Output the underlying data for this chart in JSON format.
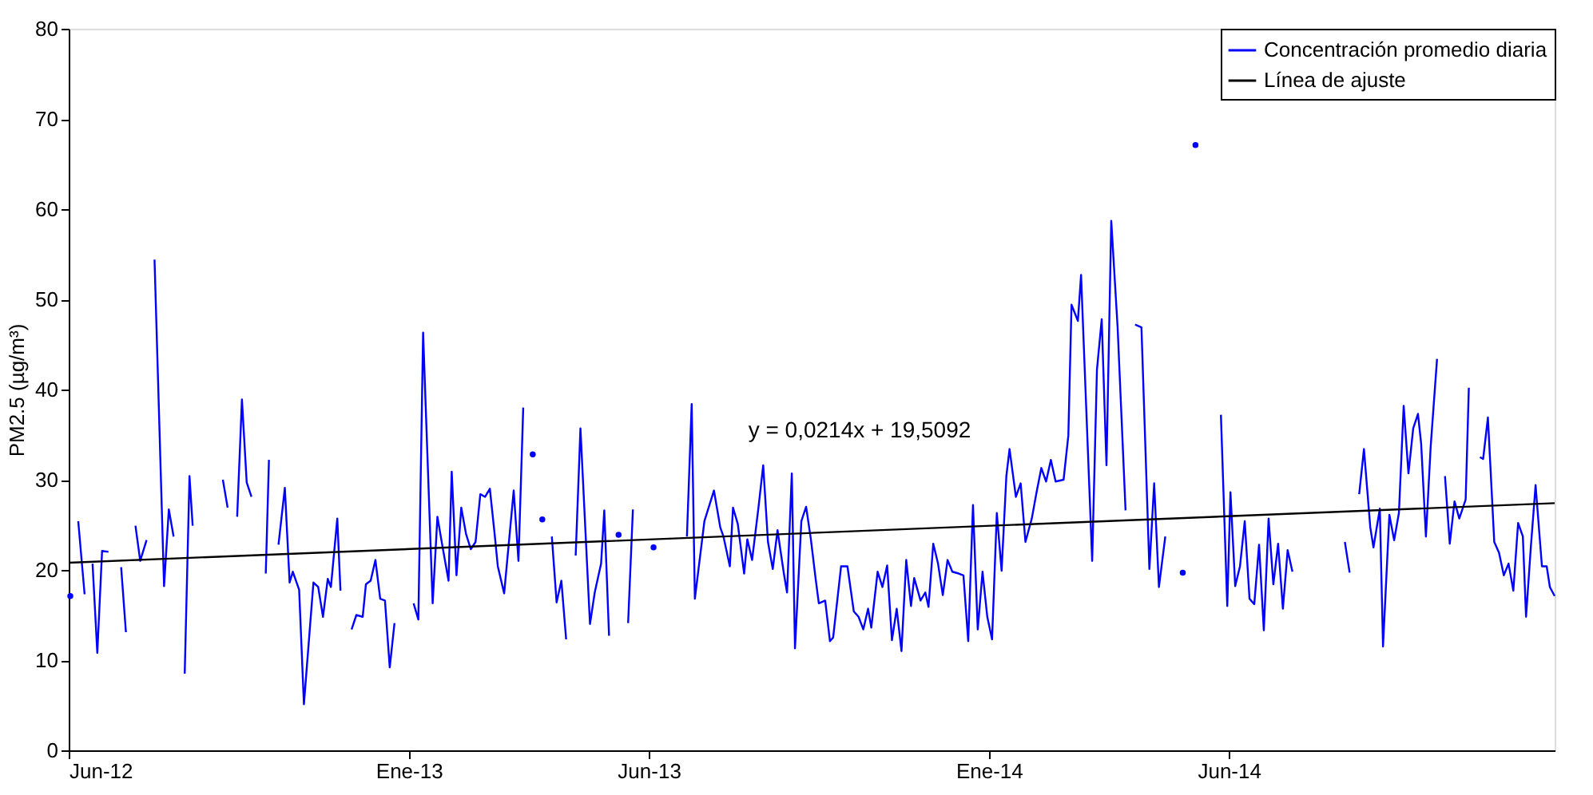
{
  "chart_data": {
    "type": "line",
    "ylabel": "PM2.5 (µg/m³)",
    "xlim": [
      "2012-06-01",
      "2014-12-23"
    ],
    "xticks": [
      {
        "value": "2012-06-01",
        "label": "Jun-12"
      },
      {
        "value": "2013-01-01",
        "label": "Ene-13"
      },
      {
        "value": "2013-06-01",
        "label": "Jun-13"
      },
      {
        "value": "2014-01-01",
        "label": "Ene-14"
      },
      {
        "value": "2014-06-01",
        "label": "Jun-14"
      }
    ],
    "ylim": [
      0,
      80
    ],
    "yticks": [
      0,
      10,
      20,
      30,
      40,
      50,
      60,
      70,
      80
    ],
    "grid": false,
    "legend": "top right",
    "marker": "none",
    "line_style": "solid",
    "annotations": [
      "y = 0,0214x + 19,5092"
    ],
    "series": [
      {
        "name": "Concentración promedio diaria",
        "color": "#0000ff",
        "x": [
          "2012-06-02",
          "2012-06-04",
          "2012-06-07",
          "2012-06-11",
          "2012-06-13",
          "2012-06-16",
          "2012-06-19",
          "2012-06-22",
          "2012-06-26",
          "2012-06-29",
          "2012-07-04",
          "2012-07-07",
          "2012-07-09",
          "2012-07-13",
          "2012-07-16",
          "2012-07-20",
          "2012-07-22",
          "2012-07-25",
          "2012-07-31",
          "2012-08-03",
          "2012-08-06",
          "2012-08-08",
          "2012-08-13",
          "2012-08-16",
          "2012-08-18",
          "2012-08-25",
          "2012-09-06",
          "2012-09-09",
          "2012-09-11",
          "2012-09-15",
          "2012-09-18",
          "2012-09-21",
          "2012-09-24",
          "2012-09-28",
          "2012-10-03",
          "2012-10-05",
          "2012-10-07",
          "2012-10-11",
          "2012-10-15",
          "2012-10-18",
          "2012-10-20",
          "2012-10-24",
          "2012-10-27",
          "2012-11-02",
          "2012-11-05",
          "2012-11-08",
          "2012-11-11",
          "2012-11-13",
          "2012-11-17",
          "2012-11-19",
          "2012-11-23",
          "2012-11-26",
          "2012-11-29",
          "2012-12-03",
          "2012-12-05",
          "2012-12-08",
          "2012-12-11",
          "2012-12-14",
          "2012-12-17",
          "2012-12-20",
          "2012-12-23",
          "2012-12-28",
          "2013-01-04",
          "2013-01-07",
          "2013-01-10",
          "2013-01-16",
          "2013-01-19",
          "2013-01-22",
          "2013-01-26",
          "2013-01-28",
          "2013-01-31",
          "2013-02-03",
          "2013-02-06",
          "2013-02-09",
          "2013-02-12",
          "2013-02-15",
          "2013-02-18",
          "2013-02-21",
          "2013-02-24",
          "2013-02-26",
          "2013-03-02",
          "2013-03-08",
          "2013-03-11",
          "2013-03-14",
          "2013-03-17",
          "2013-03-20",
          "2013-03-23",
          "2013-03-26",
          "2013-03-29",
          "2013-04-01",
          "2013-04-04",
          "2013-04-07",
          "2013-04-10",
          "2013-04-13",
          "2013-04-16",
          "2013-04-19",
          "2013-04-25",
          "2013-04-28",
          "2013-05-02",
          "2013-05-04",
          "2013-05-07",
          "2013-05-10",
          "2013-05-13",
          "2013-05-16",
          "2013-05-19",
          "2013-05-22",
          "2013-05-28",
          "2013-06-04",
          "2013-06-10",
          "2013-06-25",
          "2013-06-28",
          "2013-06-30",
          "2013-07-06",
          "2013-07-12",
          "2013-07-16",
          "2013-07-18",
          "2013-07-22",
          "2013-07-24",
          "2013-07-27",
          "2013-07-31",
          "2013-08-02",
          "2013-08-05",
          "2013-08-09",
          "2013-08-12",
          "2013-08-15",
          "2013-08-18",
          "2013-08-21",
          "2013-08-25",
          "2013-08-27",
          "2013-08-30",
          "2013-09-01",
          "2013-09-05",
          "2013-09-08",
          "2013-09-11",
          "2013-09-14",
          "2013-09-16",
          "2013-09-20",
          "2013-09-23",
          "2013-09-25",
          "2013-09-30",
          "2013-10-04",
          "2013-10-08",
          "2013-10-11",
          "2013-10-14",
          "2013-10-17",
          "2013-10-19",
          "2013-10-23",
          "2013-10-26",
          "2013-10-29",
          "2013-11-01",
          "2013-11-04",
          "2013-11-07",
          "2013-11-10",
          "2013-11-13",
          "2013-11-15",
          "2013-11-19",
          "2013-11-22",
          "2013-11-24",
          "2013-11-27",
          "2013-11-30",
          "2013-12-03",
          "2013-12-06",
          "2013-12-09",
          "2013-12-13",
          "2013-12-16",
          "2013-12-19",
          "2013-12-22",
          "2013-12-25",
          "2013-12-28",
          "2013-12-31",
          "2014-01-03",
          "2014-01-06",
          "2014-01-09",
          "2014-01-12",
          "2014-01-14",
          "2014-01-18",
          "2014-01-21",
          "2014-01-24",
          "2014-01-28",
          "2014-01-31",
          "2014-02-03",
          "2014-02-06",
          "2014-02-09",
          "2014-02-12",
          "2014-02-17",
          "2014-02-20",
          "2014-02-22",
          "2014-02-26",
          "2014-02-28",
          "2014-03-07",
          "2014-03-10",
          "2014-03-13",
          "2014-03-16",
          "2014-03-19",
          "2014-03-23",
          "2014-03-28",
          "2014-03-31",
          "2014-04-03",
          "2014-04-07",
          "2014-04-12",
          "2014-04-15",
          "2014-04-18",
          "2014-04-22",
          "2014-04-26",
          "2014-05-03",
          "2014-05-07",
          "2014-05-11",
          "2014-05-20",
          "2014-05-27",
          "2014-05-31",
          "2014-06-02",
          "2014-06-05",
          "2014-06-08",
          "2014-06-11",
          "2014-06-14",
          "2014-06-17",
          "2014-06-20",
          "2014-06-23",
          "2014-06-26",
          "2014-06-29",
          "2014-07-02",
          "2014-07-05",
          "2014-07-08",
          "2014-07-11",
          "2014-07-20",
          "2014-08-13",
          "2014-08-16",
          "2014-08-18",
          "2014-08-22",
          "2014-08-25",
          "2014-08-29",
          "2014-08-31",
          "2014-09-04",
          "2014-09-06",
          "2014-09-10",
          "2014-09-13",
          "2014-09-16",
          "2014-09-19",
          "2014-09-22",
          "2014-09-25",
          "2014-09-28",
          "2014-09-30",
          "2014-10-03",
          "2014-10-06",
          "2014-10-10",
          "2014-10-13",
          "2014-10-15",
          "2014-10-18",
          "2014-10-21",
          "2014-10-24",
          "2014-10-28",
          "2014-10-30",
          "2014-11-01",
          "2014-11-06",
          "2014-11-08",
          "2014-11-11",
          "2014-11-15",
          "2014-11-18",
          "2014-11-21",
          "2014-11-24",
          "2014-11-27",
          "2014-11-30",
          "2014-12-03",
          "2014-12-05",
          "2014-12-08",
          "2014-12-11",
          "2014-12-15",
          "2014-12-18",
          "2014-12-20",
          "2014-12-23"
        ],
        "values": [
          17.1,
          null,
          25.4,
          17.3,
          null,
          20.7,
          10.8,
          22.1,
          22.0,
          null,
          20.3,
          13.1,
          null,
          24.9,
          21.0,
          23.3,
          null,
          54.4,
          18.2,
          26.7,
          23.7,
          null,
          8.5,
          30.4,
          24.9,
          null,
          30.0,
          26.9,
          null,
          25.9,
          38.9,
          29.7,
          28.1,
          null,
          19.6,
          32.2,
          null,
          22.8,
          29.1,
          18.6,
          19.8,
          17.8,
          5.1,
          18.6,
          18.1,
          14.8,
          19.0,
          18.1,
          25.7,
          17.7,
          null,
          13.4,
          15.0,
          14.8,
          18.4,
          18.8,
          21.1,
          16.8,
          16.6,
          9.2,
          14.1,
          null,
          16.3,
          14.5,
          46.3,
          16.3,
          25.9,
          22.8,
          18.8,
          30.9,
          19.4,
          26.9,
          24.0,
          22.3,
          23.1,
          28.4,
          28.1,
          29.0,
          24.0,
          20.4,
          17.4,
          28.8,
          21.0,
          38.0,
          null,
          32.8,
          null,
          25.6,
          null,
          23.7,
          16.4,
          18.8,
          12.3,
          null,
          21.6,
          35.7,
          14.0,
          17.5,
          20.7,
          26.6,
          12.7,
          null,
          23.9,
          null,
          14.1,
          26.7,
          null,
          22.5,
          null,
          23.7,
          38.4,
          16.8,
          25.4,
          28.8,
          24.7,
          23.7,
          20.4,
          26.9,
          25.1,
          19.6,
          23.4,
          21.1,
          26.9,
          31.6,
          23.1,
          20.1,
          24.4,
          19.6,
          17.5,
          30.7,
          11.3,
          25.4,
          27.0,
          23.4,
          19.0,
          16.3,
          16.6,
          12.1,
          12.5,
          20.4,
          20.4,
          15.4,
          14.8,
          13.4,
          15.7,
          13.6,
          19.8,
          18.1,
          20.5,
          12.2,
          15.7,
          11.0,
          21.1,
          16.0,
          19.1,
          16.6,
          17.5,
          15.9,
          22.9,
          20.7,
          17.2,
          21.1,
          19.8,
          19.6,
          19.4,
          12.1,
          27.2,
          13.4,
          19.8,
          14.8,
          12.3,
          26.3,
          19.9,
          30.4,
          33.4,
          28.1,
          29.6,
          23.1,
          25.7,
          28.6,
          31.3,
          29.8,
          32.2,
          29.8,
          30.0,
          34.9,
          49.4,
          47.6,
          52.7,
          21.0,
          42.2,
          47.8,
          31.6,
          58.7,
          46.9,
          26.6,
          null,
          47.2,
          46.9,
          20.1,
          29.6,
          18.1,
          23.7,
          null,
          19.7,
          null,
          67.1,
          null,
          37.2,
          16.0,
          28.6,
          18.2,
          20.4,
          25.4,
          16.8,
          16.2,
          22.8,
          13.3,
          25.7,
          18.4,
          22.9,
          15.7,
          22.2,
          19.8,
          null,
          23.1,
          19.7,
          null,
          28.4,
          33.4,
          24.7,
          22.5,
          26.8,
          11.5,
          26.1,
          23.3,
          26.3,
          38.2,
          30.7,
          35.7,
          37.3,
          34.0,
          23.7,
          33.7,
          43.4,
          null,
          30.4,
          22.9,
          27.6,
          25.7,
          27.8,
          40.2,
          null,
          32.5,
          32.3,
          36.9,
          23.1,
          21.9,
          19.4,
          20.7,
          17.7,
          25.2,
          23.7,
          14.8,
          22.5,
          29.4,
          20.4,
          20.4,
          18.1,
          17.1
        ]
      },
      {
        "name": "Línea de ajuste",
        "color": "#000000",
        "x": [
          "2012-06-01",
          "2014-12-23"
        ],
        "values": [
          20.8,
          27.4
        ]
      }
    ]
  }
}
